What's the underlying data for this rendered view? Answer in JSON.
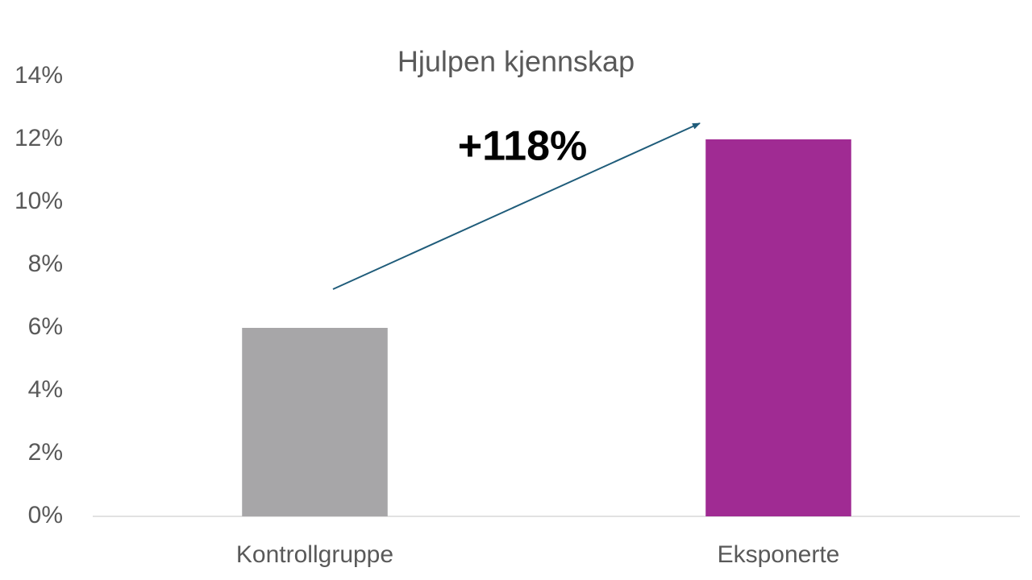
{
  "chart_data": {
    "type": "bar",
    "title": "Hjulpen kjennskap",
    "categories": [
      "Kontrollgruppe",
      "Eksponerte"
    ],
    "values": [
      6,
      12
    ],
    "colors": [
      "#a7a6a8",
      "#a02b93"
    ],
    "ylim": [
      0,
      14
    ],
    "yticks": [
      {
        "value": 0,
        "label": "0%"
      },
      {
        "value": 2,
        "label": "2%"
      },
      {
        "value": 4,
        "label": "4%"
      },
      {
        "value": 6,
        "label": "6%"
      },
      {
        "value": 8,
        "label": "8%"
      },
      {
        "value": 10,
        "label": "10%"
      },
      {
        "value": 12,
        "label": "12%"
      },
      {
        "value": 14,
        "label": "14%"
      }
    ],
    "grid": false,
    "annotation": "+118%"
  }
}
